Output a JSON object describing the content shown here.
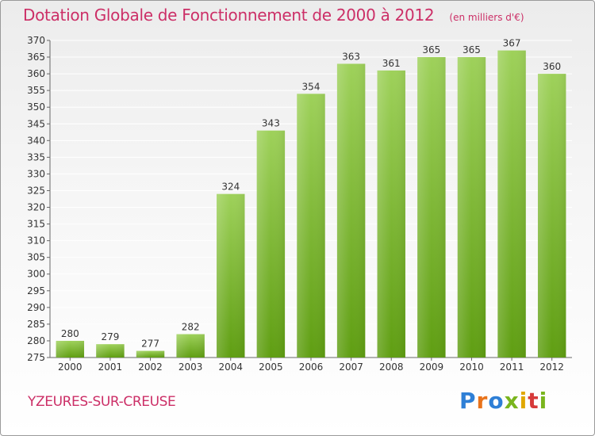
{
  "chart_data": {
    "type": "bar",
    "title": "Dotation Globale de Fonctionnement de 2000 à 2012",
    "unit_note": "(en milliers d'€)",
    "categories": [
      "2000",
      "2001",
      "2002",
      "2003",
      "2004",
      "2005",
      "2006",
      "2007",
      "2008",
      "2009",
      "2010",
      "2011",
      "2012"
    ],
    "values": [
      280,
      279,
      277,
      282,
      324,
      343,
      354,
      363,
      361,
      365,
      365,
      367,
      360
    ],
    "ylim": [
      275,
      370
    ],
    "ytick_step": 5,
    "xlabel": "",
    "ylabel": "",
    "grid": true,
    "bar_color_top": "#9ed15a",
    "bar_color_bottom": "#5f9e12"
  },
  "footer": {
    "commune": "YZEURES-SUR-CREUSE",
    "logo_text": "Proxiti"
  },
  "colors": {
    "title": "#cc2f67",
    "grid": "#ffffff",
    "axis": "#666666"
  }
}
